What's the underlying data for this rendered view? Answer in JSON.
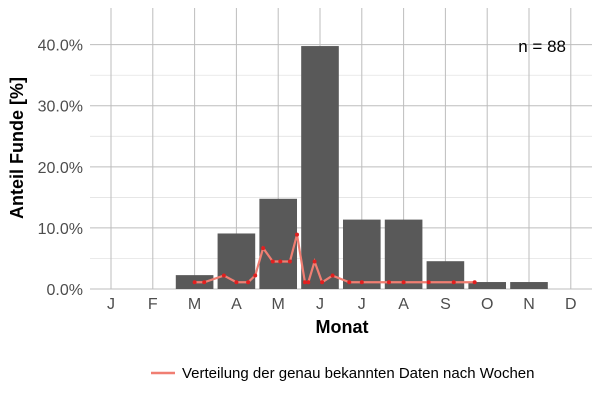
{
  "chart_data": {
    "type": "bar",
    "xlabel": "Monat",
    "ylabel": "Anteil Funde [%]",
    "annotation": "n = 88",
    "categories": [
      "J",
      "F",
      "M",
      "A",
      "M",
      "J",
      "J",
      "A",
      "S",
      "O",
      "N",
      "D"
    ],
    "y_tick_labels": [
      "0.0%",
      "10.0%",
      "20.0%",
      "30.0%",
      "40.0%"
    ],
    "ylim": [
      0,
      0.46
    ],
    "grid": true,
    "legend_position": "bottom",
    "series": [
      {
        "type": "bar",
        "color": "#595959",
        "values": [
          0,
          0,
          0.0227,
          0.0909,
          0.1477,
          0.3977,
          0.1136,
          0.1136,
          0.0455,
          0.0114,
          0.0114,
          0
        ]
      },
      {
        "name": "Verteilung der genau bekannten Daten nach Wochen",
        "type": "line",
        "color": "#f07e72",
        "point_color": "#e02020",
        "x": [
          2.0,
          2.23,
          2.7,
          3.0,
          3.28,
          3.45,
          3.64,
          3.87,
          4.05,
          4.28,
          4.45,
          4.64,
          4.72,
          4.87,
          5.05,
          5.3,
          5.7,
          6.0,
          6.65,
          7.0,
          7.6,
          8.2,
          8.7
        ],
        "values": [
          0.011,
          0.011,
          0.022,
          0.011,
          0.011,
          0.022,
          0.067,
          0.045,
          0.045,
          0.045,
          0.089,
          0.011,
          0.011,
          0.045,
          0.011,
          0.022,
          0.011,
          0.011,
          0.011,
          0.011,
          0.011,
          0.011,
          0.011
        ]
      }
    ]
  }
}
